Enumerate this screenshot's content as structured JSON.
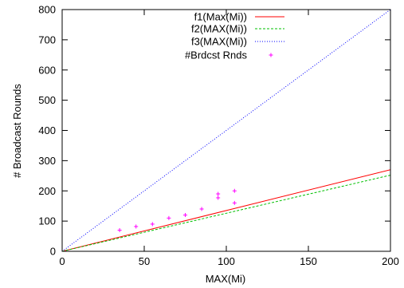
{
  "chart_data": {
    "type": "line",
    "title": "",
    "xlabel": "MAX(Mi)",
    "ylabel": "# Broadcast Rounds",
    "xlim": [
      0,
      200
    ],
    "ylim": [
      0,
      800
    ],
    "x_ticks": [
      0,
      50,
      100,
      150,
      200
    ],
    "y_ticks": [
      0,
      100,
      200,
      300,
      400,
      500,
      600,
      700,
      800
    ],
    "x_tick_labels": [
      "0",
      "50",
      "100",
      "150",
      "200"
    ],
    "y_tick_labels": [
      "0",
      "100",
      "200",
      "300",
      "400",
      "500",
      "600",
      "700",
      "800"
    ],
    "grid": false,
    "legend_position": "top-right",
    "series": [
      {
        "name": "f1(Max(Mi))",
        "kind": "line",
        "dash": "solid",
        "color": "#ff0000",
        "points": [
          [
            0,
            0
          ],
          [
            200,
            270
          ]
        ]
      },
      {
        "name": "f2(MAX(Mi))",
        "kind": "line",
        "dash": "dashed",
        "color": "#00c000",
        "points": [
          [
            0,
            0
          ],
          [
            200,
            252
          ]
        ]
      },
      {
        "name": "f3(MAX(Mi))",
        "kind": "line",
        "dash": "dotted",
        "color": "#0000ff",
        "points": [
          [
            0,
            0
          ],
          [
            200,
            800
          ]
        ]
      },
      {
        "name": "#Brdcst Rnds",
        "kind": "points",
        "marker": "+",
        "color": "#ff00ff",
        "points": [
          [
            35,
            70
          ],
          [
            45,
            82
          ],
          [
            55,
            90
          ],
          [
            65,
            110
          ],
          [
            75,
            120
          ],
          [
            85,
            140
          ],
          [
            95,
            177
          ],
          [
            95,
            190
          ],
          [
            105,
            160
          ],
          [
            105,
            200
          ]
        ]
      }
    ]
  }
}
